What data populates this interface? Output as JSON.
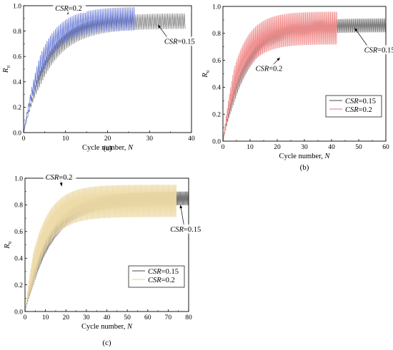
{
  "chart_data": [
    {
      "panel_label": "(a)",
      "type": "line",
      "xlabel": "Cycle number, N",
      "ylabel": "Ru",
      "xlim": [
        0,
        40
      ],
      "ylim": [
        0,
        1.0
      ],
      "xticks": [
        0,
        10,
        20,
        30,
        40
      ],
      "yticks": [
        0,
        0.2,
        0.4,
        0.6,
        0.8,
        1.0
      ],
      "ytick_labels": [
        "0.0",
        "0.2",
        "0.4",
        "0.6",
        "0.8",
        "1.0"
      ],
      "grid": false,
      "legend": null,
      "series": [
        {
          "name": "CSR=0.15",
          "color": "#6f6f6f",
          "x_end": 38.5,
          "plateau": 0.88,
          "osc_amp": 0.06,
          "rate": 0.14
        },
        {
          "name": "CSR=0.2",
          "color": "#5b6fd4",
          "x_end": 26.5,
          "plateau": 0.9,
          "osc_amp": 0.09,
          "rate": 0.18
        }
      ],
      "annotations": [
        {
          "text": "CSR=0.2",
          "at": [
            7.5,
            0.96
          ],
          "arrow_to": [
            10.5,
            0.93
          ]
        },
        {
          "text": "CSR=0.15",
          "at": [
            33.5,
            0.7
          ],
          "arrow_to": [
            32.0,
            0.85
          ]
        }
      ]
    },
    {
      "panel_label": "(b)",
      "type": "line",
      "xlabel": "Cycle number, N",
      "ylabel": "Ru",
      "xlim": [
        0,
        60
      ],
      "ylim": [
        0,
        1.0
      ],
      "xticks": [
        0,
        10,
        20,
        30,
        40,
        50,
        60
      ],
      "yticks": [
        0,
        0.2,
        0.4,
        0.6,
        0.8,
        1.0
      ],
      "ytick_labels": [
        "0.0",
        "0.2",
        "0.4",
        "0.6",
        "0.8",
        "1.0"
      ],
      "grid": false,
      "legend": "bottom-right",
      "series": [
        {
          "name": "CSR=0.15",
          "color": "#6f6f6f",
          "x_end": 60,
          "plateau": 0.86,
          "osc_amp": 0.05,
          "rate": 0.1
        },
        {
          "name": "CSR=0.2",
          "color": "#f08a8a",
          "x_end": 42,
          "plateau": 0.84,
          "osc_amp": 0.12,
          "rate": 0.14
        }
      ],
      "annotations": [
        {
          "text": "CSR=0.2",
          "at": [
            12,
            0.52
          ],
          "arrow_to": [
            21,
            0.62
          ]
        },
        {
          "text": "CSR=0.15",
          "at": [
            52,
            0.66
          ],
          "arrow_to": [
            48.5,
            0.84
          ]
        }
      ]
    },
    {
      "panel_label": "(c)",
      "type": "line",
      "xlabel": "Cycle number, N",
      "ylabel": "Ru",
      "xlim": [
        0,
        80
      ],
      "ylim": [
        0,
        1.0
      ],
      "xticks": [
        0,
        10,
        20,
        30,
        40,
        50,
        60,
        70,
        80
      ],
      "yticks": [
        0,
        0.2,
        0.4,
        0.6,
        0.8,
        1.0
      ],
      "ytick_labels": [
        "0.0",
        "0.2",
        "0.4",
        "0.6",
        "0.8",
        "1.0"
      ],
      "grid": false,
      "legend": "bottom-right",
      "series": [
        {
          "name": "CSR=0.15",
          "color": "#6f6f6f",
          "x_end": 80,
          "plateau": 0.85,
          "osc_amp": 0.05,
          "rate": 0.07
        },
        {
          "name": "CSR=0.2",
          "color": "#ecd9a4",
          "x_end": 74,
          "plateau": 0.83,
          "osc_amp": 0.12,
          "rate": 0.1
        }
      ],
      "annotations": [
        {
          "text": "CSR=0.2",
          "at": [
            10,
            0.99
          ],
          "arrow_to": [
            18,
            0.94
          ]
        },
        {
          "text": "CSR=0.15",
          "at": [
            71,
            0.6
          ],
          "arrow_to": [
            76,
            0.8
          ]
        }
      ]
    }
  ]
}
